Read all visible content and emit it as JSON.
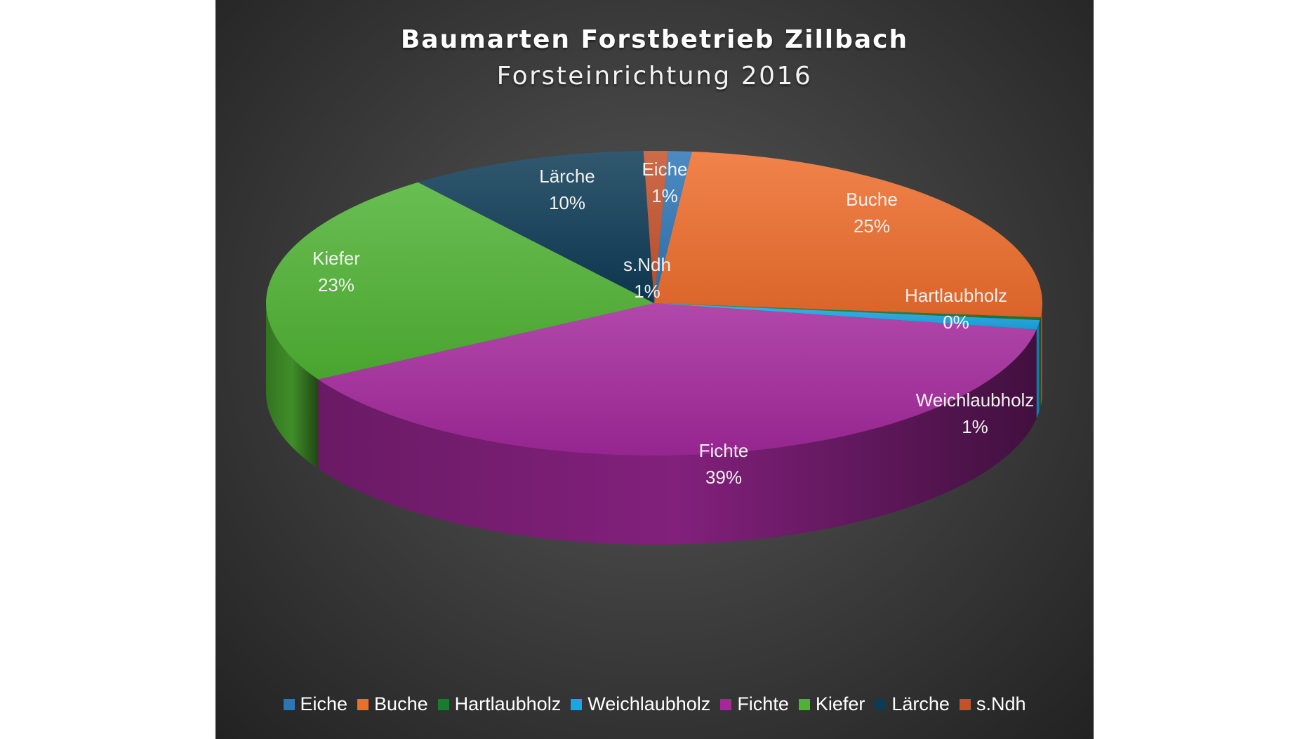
{
  "chart_data": {
    "type": "pie",
    "title": "Baumarten Forstbetrieb Zillbach",
    "subtitle": "Forsteinrichtung 2016",
    "legend_position": "bottom",
    "slices": [
      {
        "label": "Eiche",
        "value": 1,
        "value_label": "1%",
        "color": "#2e75b6"
      },
      {
        "label": "Buche",
        "value": 25,
        "value_label": "25%",
        "color": "#ed6d2b"
      },
      {
        "label": "Hartlaubholz",
        "value": 0.3,
        "value_label": "0%",
        "color": "#1a7a2e"
      },
      {
        "label": "Weichlaubholz",
        "value": 1,
        "value_label": "1%",
        "color": "#1aa6e4"
      },
      {
        "label": "Fichte",
        "value": 39,
        "value_label": "39%",
        "color": "#a3289b"
      },
      {
        "label": "Kiefer",
        "value": 23,
        "value_label": "23%",
        "color": "#4fb233"
      },
      {
        "label": "Lärche",
        "value": 10,
        "value_label": "10%",
        "color": "#0d3b55"
      },
      {
        "label": "s.Ndh",
        "value": 1,
        "value_label": "1%",
        "color": "#c4512a"
      }
    ]
  }
}
